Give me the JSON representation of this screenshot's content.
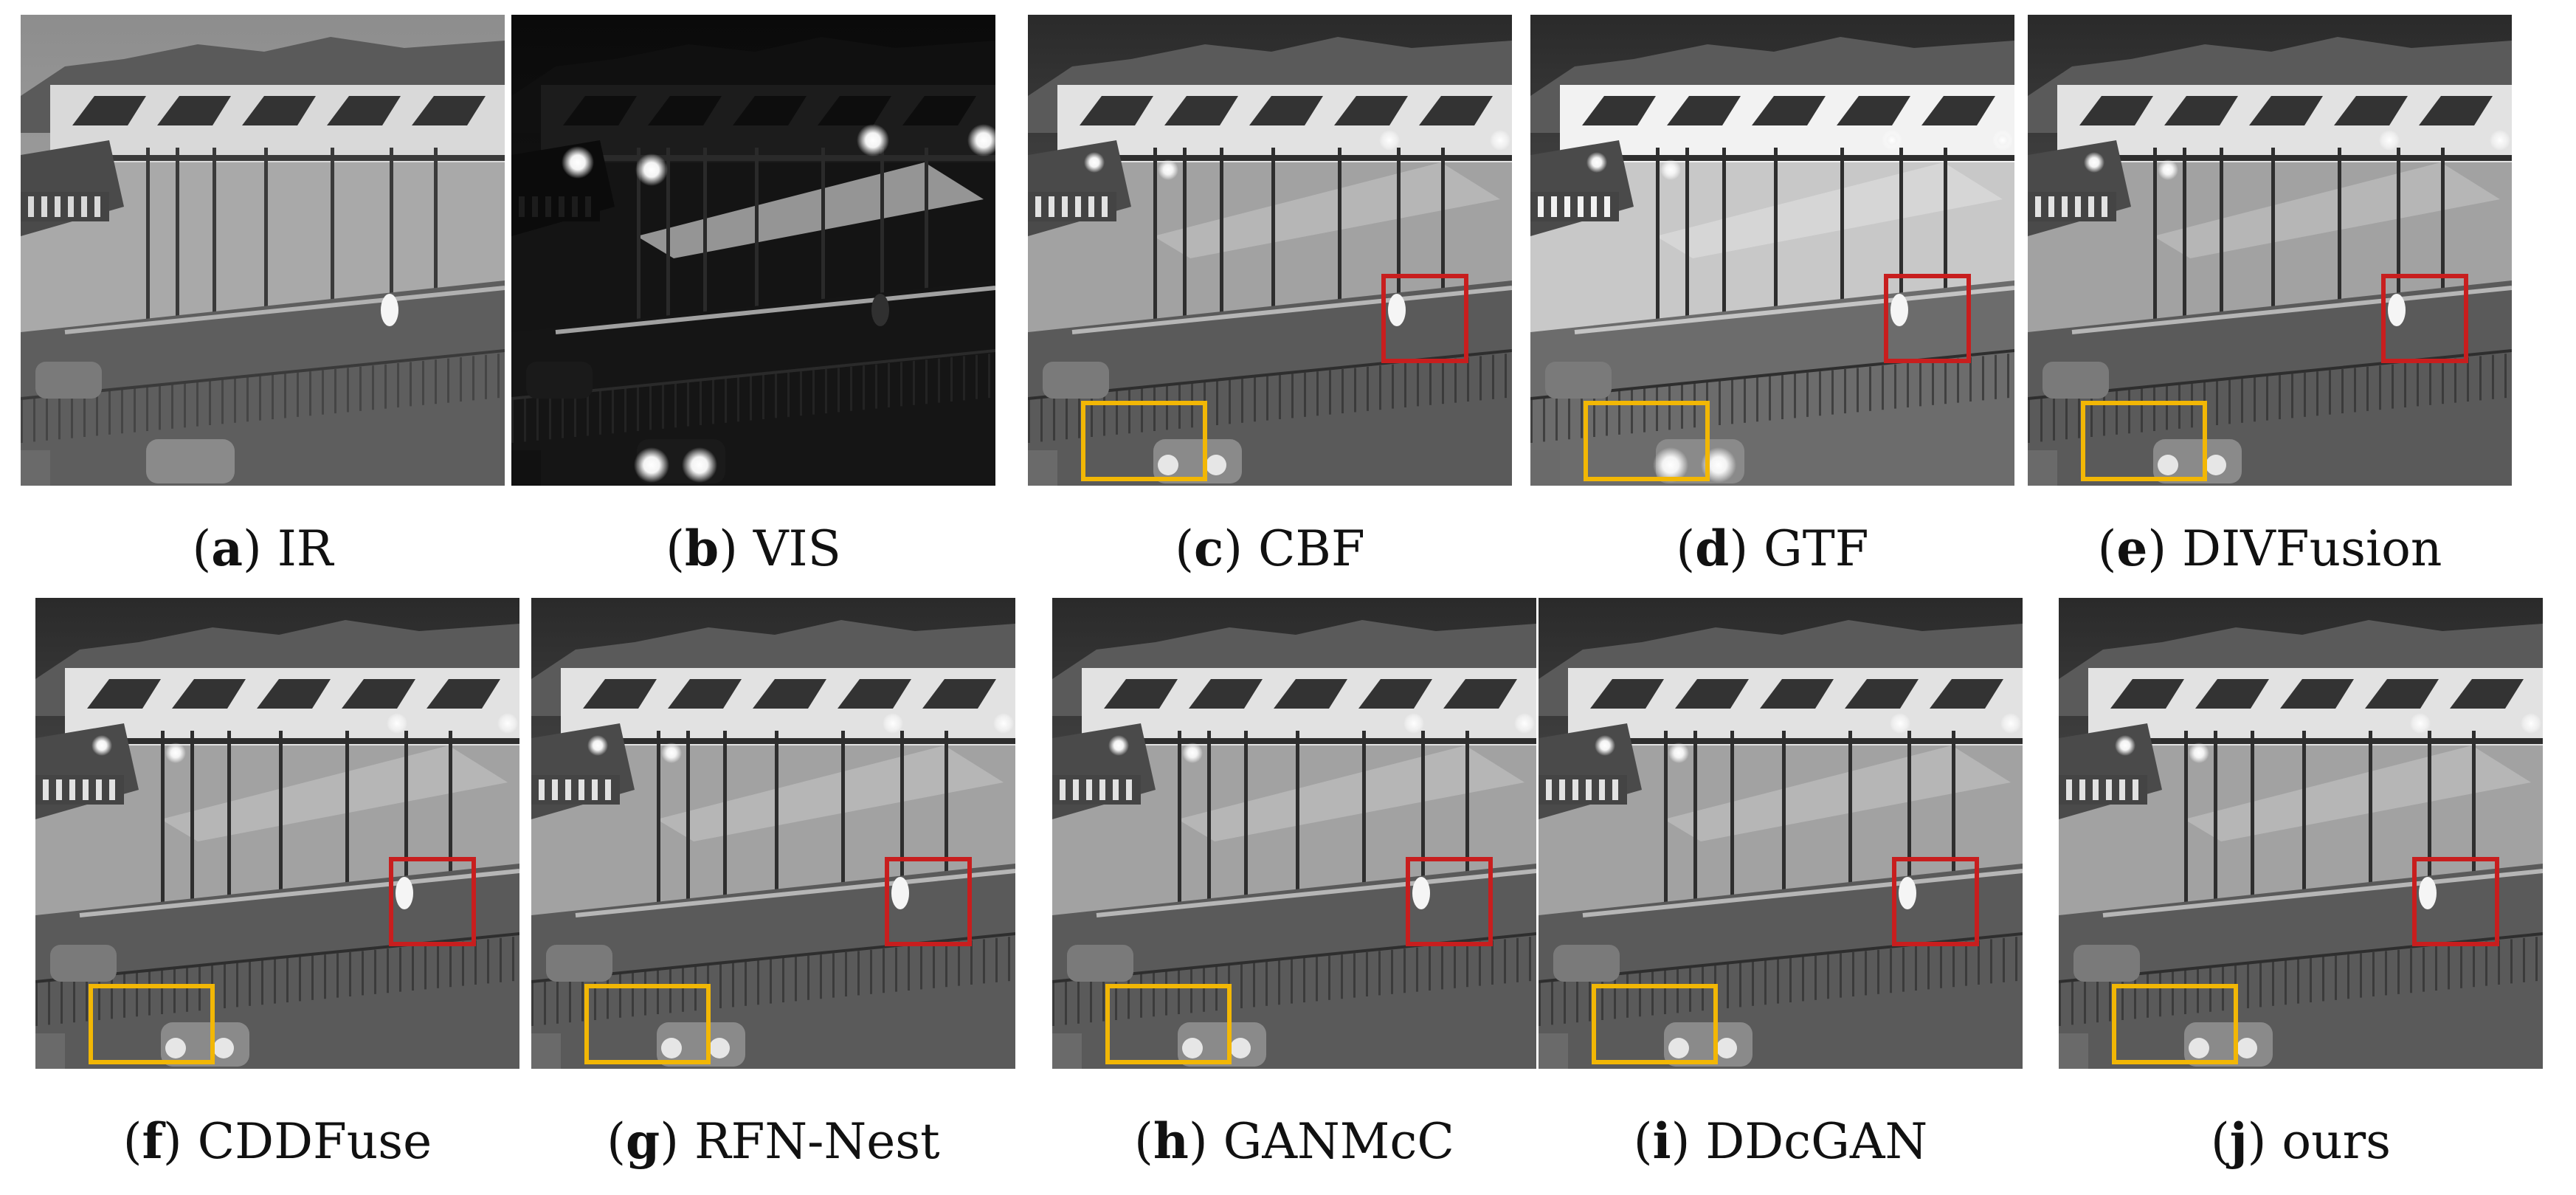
{
  "panels": [
    {
      "letter": "a",
      "label": "IR",
      "kind": "ir",
      "red": false,
      "yellow": false
    },
    {
      "letter": "b",
      "label": "VIS",
      "kind": "vis",
      "red": false,
      "yellow": false
    },
    {
      "letter": "c",
      "label": "CBF",
      "kind": "fused",
      "red": true,
      "yellow": true
    },
    {
      "letter": "d",
      "label": "GTF",
      "kind": "bright",
      "red": true,
      "yellow": true
    },
    {
      "letter": "e",
      "label": "DIVFusion",
      "kind": "fused",
      "red": true,
      "yellow": true
    },
    {
      "letter": "f",
      "label": "CDDFuse",
      "kind": "fused",
      "red": true,
      "yellow": true
    },
    {
      "letter": "g",
      "label": "RFN-Nest",
      "kind": "fused",
      "red": true,
      "yellow": true
    },
    {
      "letter": "h",
      "label": "GANMcC",
      "kind": "fused",
      "red": true,
      "yellow": true
    },
    {
      "letter": "i",
      "label": "DDcGAN",
      "kind": "fused",
      "red": true,
      "yellow": true
    },
    {
      "letter": "j",
      "label": "ours",
      "kind": "fused",
      "red": true,
      "yellow": true
    }
  ],
  "colors": {
    "red_box": "#c81e1e",
    "yellow_box": "#f2b705"
  }
}
